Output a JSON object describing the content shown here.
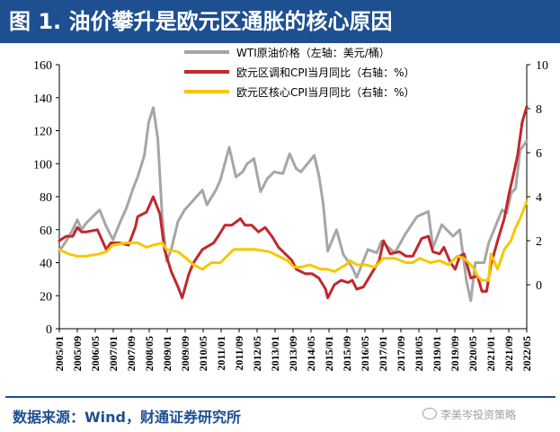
{
  "header": {
    "title": "图 1. 油价攀升是欧元区通胀的核心原因"
  },
  "footer": {
    "source": "数据来源：Wind，财通证券研究所",
    "watermark": "李美岑投资策略"
  },
  "colors": {
    "wti": "#a6a6a6",
    "headline_cpi": "#c0282d",
    "core_cpi": "#f5c800",
    "brand": "#1d4f91"
  },
  "chart_data": {
    "type": "line",
    "title": "油价攀升是欧元区通胀的核心原因",
    "x_tick_labels": [
      "2005/01",
      "2005/09",
      "2006/05",
      "2007/01",
      "2007/09",
      "2008/05",
      "2009/01",
      "2009/09",
      "2010/05",
      "2011/01",
      "2011/09",
      "2012/05",
      "2013/01",
      "2013/09",
      "2014/05",
      "2015/01",
      "2015/09",
      "2016/05",
      "2017/01",
      "2017/09",
      "2018/05",
      "2019/01",
      "2019/09",
      "2020/05",
      "2021/01",
      "2021/09",
      "2022/05"
    ],
    "x_range": [
      2005.0,
      2022.4167
    ],
    "y_left": {
      "range": [
        0,
        160
      ],
      "ticks": [
        0,
        20,
        40,
        60,
        80,
        100,
        120,
        140,
        160
      ]
    },
    "y_right": {
      "range": [
        -2,
        10
      ],
      "ticks": [
        0,
        2,
        4,
        6,
        8,
        10
      ]
    },
    "grid": false,
    "legend_position": "top-center",
    "series": [
      {
        "name": "WTI原油价格（左轴：美元/桶）",
        "axis": "left",
        "color_key": "wti",
        "points": [
          [
            2005.0,
            47
          ],
          [
            2005.25,
            53
          ],
          [
            2005.5,
            60
          ],
          [
            2005.67,
            66
          ],
          [
            2005.83,
            60
          ],
          [
            2006.0,
            64
          ],
          [
            2006.5,
            72
          ],
          [
            2006.75,
            62
          ],
          [
            2007.0,
            54
          ],
          [
            2007.25,
            64
          ],
          [
            2007.5,
            73
          ],
          [
            2007.75,
            85
          ],
          [
            2007.92,
            92
          ],
          [
            2008.17,
            105
          ],
          [
            2008.33,
            125
          ],
          [
            2008.5,
            134
          ],
          [
            2008.67,
            115
          ],
          [
            2008.83,
            68
          ],
          [
            2009.0,
            41
          ],
          [
            2009.17,
            48
          ],
          [
            2009.42,
            65
          ],
          [
            2009.67,
            72
          ],
          [
            2010.0,
            78
          ],
          [
            2010.33,
            84
          ],
          [
            2010.5,
            75
          ],
          [
            2010.83,
            84
          ],
          [
            2011.0,
            90
          ],
          [
            2011.33,
            110
          ],
          [
            2011.58,
            92
          ],
          [
            2011.83,
            95
          ],
          [
            2012.0,
            100
          ],
          [
            2012.25,
            103
          ],
          [
            2012.5,
            83
          ],
          [
            2012.75,
            91
          ],
          [
            2013.0,
            95
          ],
          [
            2013.33,
            94
          ],
          [
            2013.58,
            106
          ],
          [
            2013.83,
            97
          ],
          [
            2014.0,
            95
          ],
          [
            2014.5,
            105
          ],
          [
            2014.67,
            93
          ],
          [
            2014.83,
            76
          ],
          [
            2015.0,
            47
          ],
          [
            2015.33,
            60
          ],
          [
            2015.58,
            45
          ],
          [
            2015.92,
            37
          ],
          [
            2016.08,
            31
          ],
          [
            2016.5,
            48
          ],
          [
            2016.83,
            46
          ],
          [
            2017.0,
            53
          ],
          [
            2017.5,
            46
          ],
          [
            2017.92,
            58
          ],
          [
            2018.33,
            68
          ],
          [
            2018.75,
            71
          ],
          [
            2018.92,
            49
          ],
          [
            2019.25,
            63
          ],
          [
            2019.67,
            56
          ],
          [
            2019.92,
            60
          ],
          [
            2020.17,
            29
          ],
          [
            2020.33,
            17
          ],
          [
            2020.5,
            40
          ],
          [
            2020.83,
            40
          ],
          [
            2021.0,
            52
          ],
          [
            2021.5,
            72
          ],
          [
            2021.67,
            70
          ],
          [
            2021.83,
            82
          ],
          [
            2022.0,
            85
          ],
          [
            2022.17,
            108
          ],
          [
            2022.42,
            114
          ]
        ]
      },
      {
        "name": "欧元区调和CPI当月同比（右轴：%）",
        "axis": "right",
        "color_key": "headline_cpi",
        "points": [
          [
            2005.0,
            2.0
          ],
          [
            2005.25,
            2.2
          ],
          [
            2005.5,
            2.2
          ],
          [
            2005.67,
            2.6
          ],
          [
            2005.83,
            2.4
          ],
          [
            2006.0,
            2.4
          ],
          [
            2006.42,
            2.5
          ],
          [
            2006.75,
            1.6
          ],
          [
            2006.92,
            1.9
          ],
          [
            2007.25,
            1.9
          ],
          [
            2007.58,
            1.8
          ],
          [
            2007.83,
            2.6
          ],
          [
            2007.92,
            3.1
          ],
          [
            2008.25,
            3.3
          ],
          [
            2008.5,
            4.0
          ],
          [
            2008.75,
            3.2
          ],
          [
            2008.92,
            1.6
          ],
          [
            2009.17,
            0.6
          ],
          [
            2009.42,
            -0.1
          ],
          [
            2009.58,
            -0.6
          ],
          [
            2009.83,
            0.5
          ],
          [
            2010.0,
            1.0
          ],
          [
            2010.33,
            1.6
          ],
          [
            2010.75,
            1.9
          ],
          [
            2010.92,
            2.2
          ],
          [
            2011.17,
            2.7
          ],
          [
            2011.42,
            2.7
          ],
          [
            2011.75,
            3.0
          ],
          [
            2011.92,
            2.7
          ],
          [
            2012.17,
            2.7
          ],
          [
            2012.42,
            2.4
          ],
          [
            2012.67,
            2.6
          ],
          [
            2012.92,
            2.2
          ],
          [
            2013.17,
            1.7
          ],
          [
            2013.42,
            1.4
          ],
          [
            2013.67,
            1.1
          ],
          [
            2013.83,
            0.7
          ],
          [
            2014.17,
            0.5
          ],
          [
            2014.42,
            0.5
          ],
          [
            2014.67,
            0.3
          ],
          [
            2014.92,
            -0.2
          ],
          [
            2015.0,
            -0.6
          ],
          [
            2015.25,
            0.0
          ],
          [
            2015.5,
            0.2
          ],
          [
            2015.75,
            0.1
          ],
          [
            2015.92,
            0.2
          ],
          [
            2016.08,
            -0.2
          ],
          [
            2016.33,
            -0.1
          ],
          [
            2016.58,
            0.4
          ],
          [
            2016.92,
            1.1
          ],
          [
            2017.08,
            2.0
          ],
          [
            2017.33,
            1.4
          ],
          [
            2017.67,
            1.5
          ],
          [
            2017.92,
            1.3
          ],
          [
            2018.17,
            1.3
          ],
          [
            2018.5,
            2.1
          ],
          [
            2018.75,
            2.2
          ],
          [
            2018.92,
            1.5
          ],
          [
            2019.17,
            1.4
          ],
          [
            2019.33,
            1.7
          ],
          [
            2019.58,
            1.0
          ],
          [
            2019.75,
            0.7
          ],
          [
            2019.92,
            1.3
          ],
          [
            2020.08,
            1.4
          ],
          [
            2020.33,
            0.3
          ],
          [
            2020.58,
            0.4
          ],
          [
            2020.75,
            -0.3
          ],
          [
            2020.92,
            -0.3
          ],
          [
            2021.08,
            0.9
          ],
          [
            2021.33,
            2.0
          ],
          [
            2021.58,
            3.0
          ],
          [
            2021.75,
            4.1
          ],
          [
            2021.92,
            5.0
          ],
          [
            2022.08,
            5.9
          ],
          [
            2022.25,
            7.4
          ],
          [
            2022.42,
            8.1
          ]
        ]
      },
      {
        "name": "欧元区核心CPI当月同比（右轴：%）",
        "axis": "right",
        "color_key": "core_cpi",
        "points": [
          [
            2005.0,
            1.6
          ],
          [
            2005.33,
            1.4
          ],
          [
            2005.67,
            1.3
          ],
          [
            2006.0,
            1.3
          ],
          [
            2006.5,
            1.4
          ],
          [
            2006.75,
            1.5
          ],
          [
            2007.0,
            1.8
          ],
          [
            2007.5,
            1.9
          ],
          [
            2007.92,
            1.9
          ],
          [
            2008.25,
            1.7
          ],
          [
            2008.5,
            1.8
          ],
          [
            2008.83,
            1.9
          ],
          [
            2009.0,
            1.6
          ],
          [
            2009.42,
            1.5
          ],
          [
            2009.83,
            1.1
          ],
          [
            2010.0,
            0.9
          ],
          [
            2010.33,
            0.7
          ],
          [
            2010.67,
            1.0
          ],
          [
            2011.0,
            1.0
          ],
          [
            2011.5,
            1.6
          ],
          [
            2011.92,
            1.6
          ],
          [
            2012.33,
            1.6
          ],
          [
            2012.83,
            1.5
          ],
          [
            2013.17,
            1.3
          ],
          [
            2013.5,
            1.1
          ],
          [
            2013.75,
            0.8
          ],
          [
            2014.0,
            0.8
          ],
          [
            2014.33,
            0.9
          ],
          [
            2014.75,
            0.7
          ],
          [
            2015.0,
            0.7
          ],
          [
            2015.25,
            0.6
          ],
          [
            2015.67,
            0.9
          ],
          [
            2015.83,
            1.1
          ],
          [
            2016.08,
            0.9
          ],
          [
            2016.42,
            0.9
          ],
          [
            2016.75,
            0.8
          ],
          [
            2017.08,
            1.2
          ],
          [
            2017.5,
            1.2
          ],
          [
            2017.92,
            1.0
          ],
          [
            2018.17,
            1.0
          ],
          [
            2018.42,
            1.2
          ],
          [
            2018.83,
            1.0
          ],
          [
            2019.17,
            1.1
          ],
          [
            2019.5,
            0.9
          ],
          [
            2019.83,
            1.3
          ],
          [
            2020.08,
            1.2
          ],
          [
            2020.42,
            0.8
          ],
          [
            2020.58,
            0.4
          ],
          [
            2020.75,
            0.2
          ],
          [
            2021.0,
            0.2
          ],
          [
            2021.08,
            1.4
          ],
          [
            2021.33,
            0.7
          ],
          [
            2021.58,
            1.6
          ],
          [
            2021.83,
            2.0
          ],
          [
            2022.0,
            2.6
          ],
          [
            2022.17,
            3.0
          ],
          [
            2022.42,
            3.8
          ]
        ]
      }
    ]
  }
}
